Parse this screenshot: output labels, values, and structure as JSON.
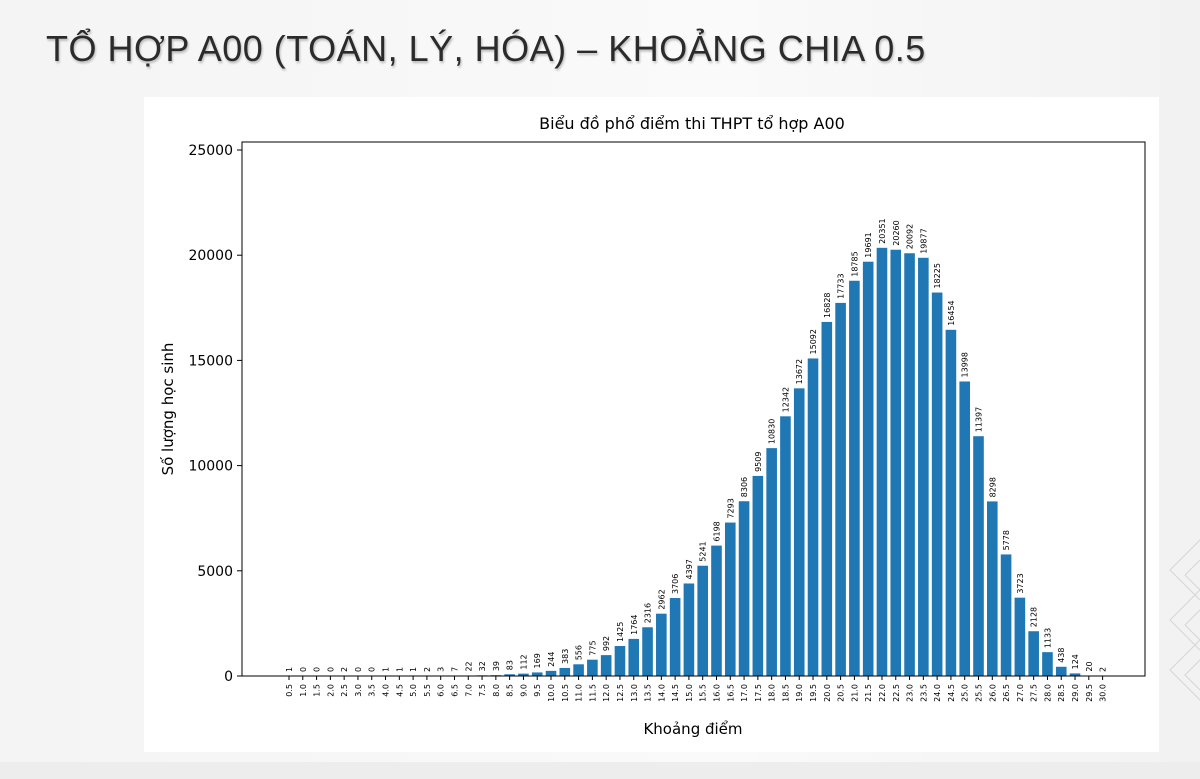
{
  "slide": {
    "title": "TỔ HỢP A00 (TOÁN, LÝ, HÓA) – KHOẢNG CHIA 0.5"
  },
  "chart_data": {
    "type": "bar",
    "title": "Biểu đồ phổ điểm thi THPT tổ hợp A00",
    "xlabel": "Khoảng điểm",
    "ylabel": "Số lượng học sinh",
    "ylim": [
      0,
      25000
    ],
    "yticks": [
      "0",
      "5000",
      "10000",
      "15000",
      "20000",
      "25000"
    ],
    "grid": false,
    "bar_color": "#1f77b4",
    "categories": [
      "0.5",
      "1.0",
      "1.5",
      "2.0",
      "2.5",
      "3.0",
      "3.5",
      "4.0",
      "4.5",
      "5.0",
      "5.5",
      "6.0",
      "6.5",
      "7.0",
      "7.5",
      "8.0",
      "8.5",
      "9.0",
      "9.5",
      "10.0",
      "10.5",
      "11.0",
      "11.5",
      "12.0",
      "12.5",
      "13.0",
      "13.5",
      "14.0",
      "14.5",
      "15.0",
      "15.5",
      "16.0",
      "16.5",
      "17.0",
      "17.5",
      "18.0",
      "18.5",
      "19.0",
      "19.5",
      "20.0",
      "20.5",
      "21.0",
      "21.5",
      "22.0",
      "22.5",
      "23.0",
      "23.5",
      "24.0",
      "24.5",
      "25.0",
      "25.5",
      "26.0",
      "26.5",
      "27.0",
      "27.5",
      "28.0",
      "28.5",
      "29.0",
      "29.5",
      "30.0"
    ],
    "values": [
      1,
      0,
      0,
      0,
      2,
      0,
      0,
      1,
      1,
      1,
      2,
      3,
      7,
      22,
      32,
      39,
      83,
      112,
      169,
      244,
      383,
      556,
      775,
      992,
      1425,
      1764,
      2316,
      2962,
      3706,
      4397,
      5241,
      6198,
      7293,
      8306,
      9509,
      10830,
      12342,
      13672,
      15092,
      16828,
      17733,
      18785,
      19691,
      20351,
      20260,
      20092,
      19877,
      18225,
      16454,
      13998,
      11397,
      8298,
      5778,
      3723,
      2128,
      1133,
      438,
      124,
      20,
      2
    ]
  }
}
